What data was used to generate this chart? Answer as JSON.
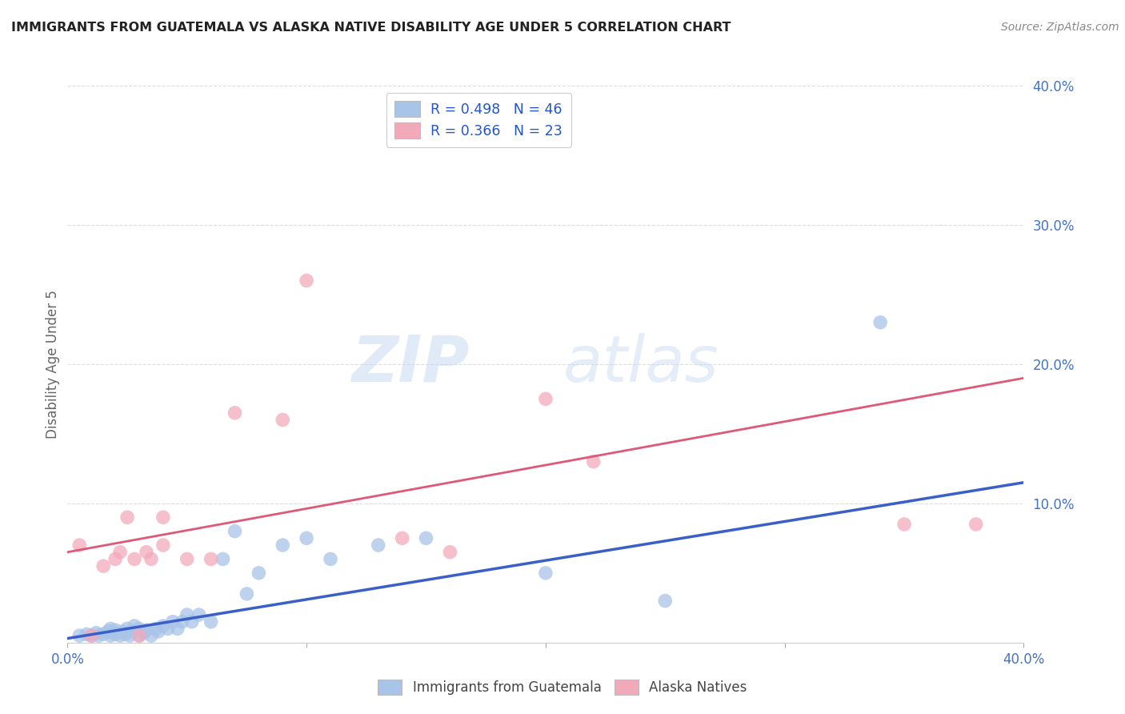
{
  "title": "IMMIGRANTS FROM GUATEMALA VS ALASKA NATIVE DISABILITY AGE UNDER 5 CORRELATION CHART",
  "source": "Source: ZipAtlas.com",
  "ylabel": "Disability Age Under 5",
  "xlim": [
    0.0,
    0.4
  ],
  "ylim": [
    0.0,
    0.4
  ],
  "xtick_vals": [
    0.0,
    0.1,
    0.2,
    0.3,
    0.4
  ],
  "xtick_labels_show": [
    "0.0%",
    "",
    "",
    "",
    "40.0%"
  ],
  "ytick_vals": [
    0.0,
    0.1,
    0.2,
    0.3,
    0.4
  ],
  "ytick_labels_right": [
    "",
    "10.0%",
    "20.0%",
    "30.0%",
    "40.0%"
  ],
  "legend_line1": "R = 0.498   N = 46",
  "legend_line2": "R = 0.366   N = 23",
  "blue_color": "#a8c4e8",
  "pink_color": "#f2aabb",
  "blue_line_color": "#3a5fc8",
  "pink_line_color": "#e05878",
  "blue_scatter_x": [
    0.005,
    0.008,
    0.01,
    0.012,
    0.013,
    0.015,
    0.017,
    0.018,
    0.018,
    0.02,
    0.02,
    0.022,
    0.023,
    0.024,
    0.025,
    0.026,
    0.027,
    0.028,
    0.03,
    0.03,
    0.032,
    0.033,
    0.035,
    0.037,
    0.038,
    0.04,
    0.042,
    0.044,
    0.046,
    0.048,
    0.05,
    0.052,
    0.055,
    0.06,
    0.065,
    0.07,
    0.075,
    0.08,
    0.09,
    0.1,
    0.11,
    0.13,
    0.15,
    0.2,
    0.25,
    0.34
  ],
  "blue_scatter_y": [
    0.005,
    0.006,
    0.005,
    0.007,
    0.005,
    0.006,
    0.008,
    0.005,
    0.01,
    0.006,
    0.009,
    0.005,
    0.008,
    0.006,
    0.01,
    0.005,
    0.008,
    0.012,
    0.005,
    0.01,
    0.007,
    0.009,
    0.005,
    0.01,
    0.008,
    0.012,
    0.01,
    0.015,
    0.01,
    0.015,
    0.02,
    0.015,
    0.02,
    0.015,
    0.06,
    0.08,
    0.035,
    0.05,
    0.07,
    0.075,
    0.06,
    0.07,
    0.075,
    0.05,
    0.03,
    0.23
  ],
  "pink_scatter_x": [
    0.005,
    0.01,
    0.015,
    0.02,
    0.022,
    0.025,
    0.028,
    0.03,
    0.033,
    0.035,
    0.04,
    0.04,
    0.05,
    0.06,
    0.07,
    0.09,
    0.1,
    0.14,
    0.16,
    0.2,
    0.22,
    0.35,
    0.38
  ],
  "pink_scatter_y": [
    0.07,
    0.005,
    0.055,
    0.06,
    0.065,
    0.09,
    0.06,
    0.005,
    0.065,
    0.06,
    0.07,
    0.09,
    0.06,
    0.06,
    0.165,
    0.16,
    0.26,
    0.075,
    0.065,
    0.175,
    0.13,
    0.085,
    0.085
  ],
  "blue_fit_x": [
    0.0,
    0.4
  ],
  "blue_fit_y": [
    0.003,
    0.115
  ],
  "pink_fit_x": [
    0.0,
    0.4
  ],
  "pink_fit_y": [
    0.065,
    0.19
  ],
  "watermark_zip": "ZIP",
  "watermark_atlas": "atlas",
  "background_color": "#ffffff",
  "legend_label_blue": "Immigrants from Guatemala",
  "legend_label_pink": "Alaska Natives",
  "grid_color": "#dddddd",
  "tick_color": "#aaaaaa"
}
